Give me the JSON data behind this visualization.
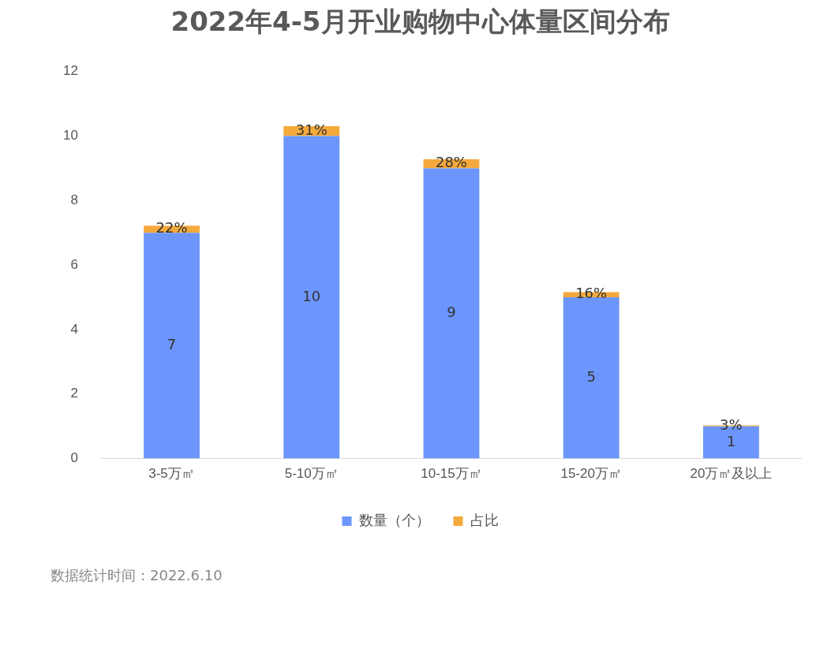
{
  "chart_data": {
    "type": "bar",
    "title": "2022年4-5月开业购物中心体量区间分布",
    "categories": [
      "3-5万㎡",
      "5-10万㎡",
      "10-15万㎡",
      "15-20万㎡",
      "20万㎡及以上"
    ],
    "stacked": true,
    "ylim": [
      0,
      12
    ],
    "yticks": [
      0,
      2,
      4,
      6,
      8,
      10,
      12
    ],
    "grid": false,
    "legend": "bottom",
    "series": [
      {
        "name": "数量（个）",
        "color": "#6c96fc",
        "values": [
          7,
          10,
          9,
          5,
          1
        ],
        "value_labels": [
          "7",
          "10",
          "9",
          "5",
          "1"
        ]
      },
      {
        "name": "占比",
        "color": "#f4a93c",
        "values": [
          0.22,
          0.31,
          0.28,
          0.16,
          0.03
        ],
        "value_labels": [
          "22%",
          "31%",
          "28%",
          "16%",
          "3%"
        ]
      }
    ],
    "annotations": [
      "数据统计时间：2022.6.10"
    ]
  }
}
